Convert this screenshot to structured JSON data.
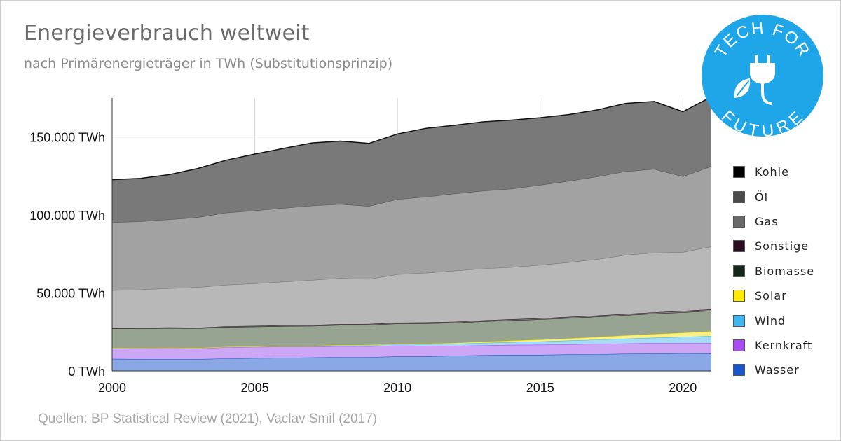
{
  "page": {
    "title": "Energieverbrauch weltweit",
    "subtitle": "nach Primärenergieträger in TWh (Substitutionsprinzip)",
    "source": "Quellen: BP Statistical Review (2021), Vaclav Smil (2017)"
  },
  "logo": {
    "text_top": "TECH FOR",
    "text_bottom": "FUTURE",
    "color": "#1ea6e9",
    "icon": "plug-leaf-icon"
  },
  "chart_data": {
    "type": "area",
    "stacked": true,
    "x": [
      2000,
      2001,
      2002,
      2003,
      2004,
      2005,
      2006,
      2007,
      2008,
      2009,
      2010,
      2011,
      2012,
      2013,
      2014,
      2015,
      2016,
      2017,
      2018,
      2019,
      2020,
      2021
    ],
    "xticks": [
      2000,
      2005,
      2010,
      2015,
      2020
    ],
    "xlim": [
      2000,
      2021
    ],
    "ylim": [
      0,
      175000
    ],
    "yticks": [
      0,
      50000,
      100000,
      150000
    ],
    "ytick_labels": [
      "0 TWh",
      "50.000 TWh",
      "100.000 TWh",
      "150.000 TWh"
    ],
    "grid": true,
    "legend_position": "right",
    "series": [
      {
        "name": "Wasser",
        "color": "#8aa8e6",
        "line": "#1a56c8",
        "swatch": "#1a56c8",
        "values": [
          7700,
          7600,
          7600,
          7600,
          8000,
          8200,
          8400,
          8600,
          8900,
          8900,
          9300,
          9400,
          9800,
          10100,
          10300,
          10300,
          10600,
          10700,
          11000,
          11100,
          11300,
          11200
        ]
      },
      {
        "name": "Kernkraft",
        "color": "#cda6f6",
        "line": "#a94df0",
        "swatch": "#a94df0",
        "values": [
          6900,
          7000,
          7100,
          6900,
          7200,
          7200,
          7200,
          7000,
          7000,
          6900,
          7000,
          6700,
          6300,
          6300,
          6400,
          6500,
          6500,
          6600,
          6600,
          6700,
          6500,
          6700
        ]
      },
      {
        "name": "Wind",
        "color": "#a6dcf5",
        "line": "#3fb8ee",
        "swatch": "#3fb8ee",
        "values": [
          80,
          100,
          140,
          170,
          220,
          280,
          350,
          450,
          580,
          730,
          900,
          1100,
          1300,
          1600,
          1800,
          2100,
          2400,
          2800,
          3100,
          3500,
          4000,
          4500
        ]
      },
      {
        "name": "Solar",
        "color": "#fbf088",
        "line": "#f7e000",
        "swatch": "#ffea00",
        "values": [
          10,
          10,
          10,
          15,
          20,
          25,
          30,
          40,
          60,
          100,
          170,
          300,
          500,
          700,
          900,
          1100,
          1300,
          1600,
          2000,
          2300,
          2600,
          3000
        ]
      },
      {
        "name": "Biomasse",
        "color": "#98a492",
        "line": "#1e2a1a",
        "swatch": "#12261a",
        "values": [
          12500,
          12500,
          12600,
          12600,
          12700,
          12700,
          12800,
          12800,
          12900,
          12900,
          13000,
          13000,
          13000,
          13100,
          13100,
          13100,
          13100,
          13100,
          13100,
          13200,
          13200,
          13200
        ]
      },
      {
        "name": "Sonstige",
        "color": "#8d7d88",
        "line": "#2c0f22",
        "swatch": "#2a0d1e",
        "values": [
          400,
          420,
          440,
          460,
          480,
          500,
          520,
          540,
          560,
          580,
          600,
          620,
          640,
          660,
          680,
          700,
          730,
          760,
          790,
          820,
          850,
          880
        ]
      },
      {
        "name": "Gas",
        "color": "#b8b8b8",
        "line": "#7a7a7a",
        "swatch": "#6a6a6a",
        "values": [
          24100,
          24500,
          25100,
          25900,
          26600,
          27200,
          27900,
          28900,
          29500,
          28800,
          31000,
          31800,
          32700,
          33200,
          33400,
          34200,
          35000,
          36100,
          37800,
          38200,
          37800,
          40300
        ]
      },
      {
        "name": "Öl",
        "color": "#a2a2a2",
        "line": "#5a5a5a",
        "swatch": "#4a4a4a",
        "values": [
          43600,
          43800,
          44200,
          44900,
          46300,
          46800,
          47300,
          47700,
          47500,
          46800,
          48200,
          48800,
          49500,
          49900,
          50300,
          51300,
          52200,
          53000,
          53600,
          53700,
          48500,
          51500
        ]
      },
      {
        "name": "Kohle",
        "color": "#797979",
        "line": "#111111",
        "swatch": "#000000",
        "values": [
          27400,
          27600,
          28700,
          31300,
          33700,
          36200,
          38200,
          40200,
          40400,
          40200,
          41800,
          43900,
          43800,
          44200,
          44000,
          43100,
          42600,
          42700,
          43600,
          43300,
          41500,
          44500
        ]
      }
    ]
  }
}
